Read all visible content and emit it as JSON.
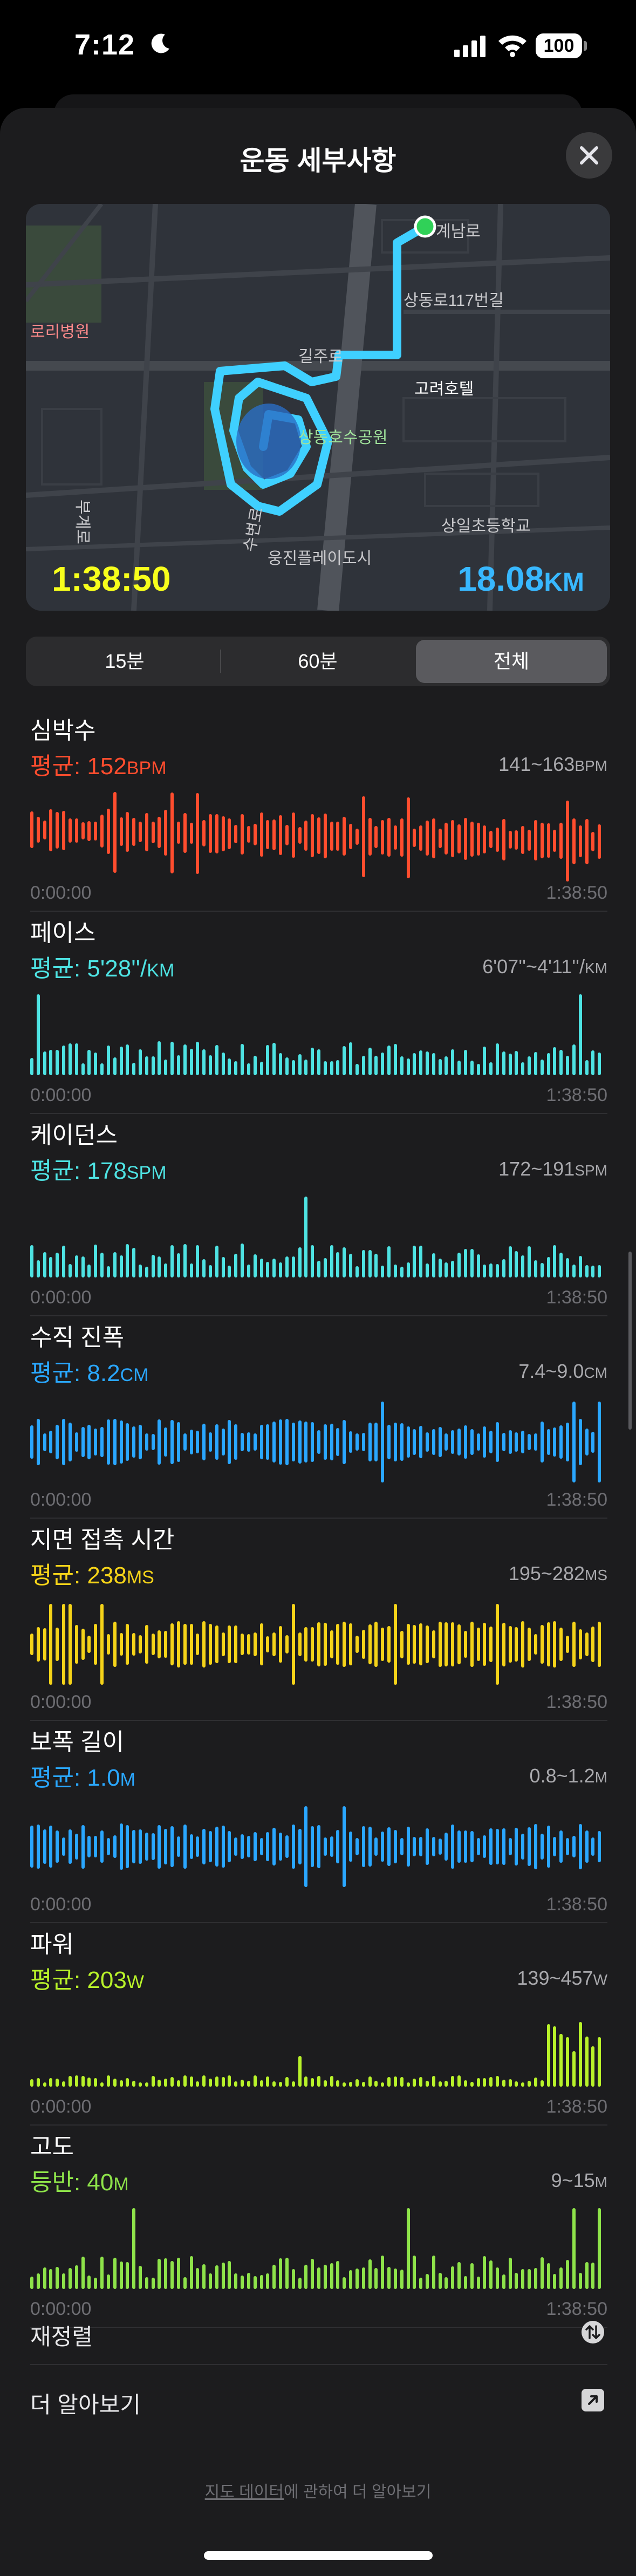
{
  "status": {
    "time": "7:12",
    "battery": "100"
  },
  "header": {
    "title": "운동 세부사항"
  },
  "map": {
    "duration": "1:38:50",
    "distance": "18.08",
    "distance_unit": "KM",
    "labels": {
      "hospital": "로리병원",
      "road1": "계남로",
      "road2": "상동로117번길",
      "road3": "길주로",
      "hotel": "고려호텔",
      "park": "상동호수공원",
      "school": "상일초등학교",
      "building": "웅진플레이도시",
      "road4": "부계로",
      "road5": "수변로"
    }
  },
  "segments": {
    "opt1": "15분",
    "opt2": "60분",
    "opt3": "전체",
    "selected": "전체"
  },
  "metrics": [
    {
      "title": "심박수",
      "avg_prefix": "평균: ",
      "avg_value": "152",
      "avg_unit": "BPM",
      "range": "141~163",
      "range_unit": "BPM",
      "start": "0:00:00",
      "end": "1:38:50",
      "color": "#ff4d2e"
    },
    {
      "title": "페이스",
      "avg_prefix": "평균: ",
      "avg_value": "5'28''/",
      "avg_unit": "KM",
      "range": "6'07''~4'11''/",
      "range_unit": "KM",
      "start": "0:00:00",
      "end": "1:38:50",
      "color": "#4ee3e3"
    },
    {
      "title": "케이던스",
      "avg_prefix": "평균: ",
      "avg_value": "178",
      "avg_unit": "SPM",
      "range": "172~191",
      "range_unit": "SPM",
      "start": "0:00:00",
      "end": "1:38:50",
      "color": "#4ee3e3"
    },
    {
      "title": "수직 진폭",
      "avg_prefix": "평균: ",
      "avg_value": "8.2",
      "avg_unit": "CM",
      "range": "7.4~9.0",
      "range_unit": "CM",
      "start": "0:00:00",
      "end": "1:38:50",
      "color": "#2aa7ff"
    },
    {
      "title": "지면 접촉 시간",
      "avg_prefix": "평균: ",
      "avg_value": "238",
      "avg_unit": "MS",
      "range": "195~282",
      "range_unit": "MS",
      "start": "0:00:00",
      "end": "1:38:50",
      "color": "#f5d319"
    },
    {
      "title": "보폭 길이",
      "avg_prefix": "평균: ",
      "avg_value": "1.0",
      "avg_unit": "M",
      "range": "0.8~1.2",
      "range_unit": "M",
      "start": "0:00:00",
      "end": "1:38:50",
      "color": "#2aa7ff"
    },
    {
      "title": "파워",
      "avg_prefix": "평균: ",
      "avg_value": "203",
      "avg_unit": "W",
      "range": "139~457",
      "range_unit": "W",
      "start": "0:00:00",
      "end": "1:38:50",
      "color": "#b8f22a"
    },
    {
      "title": "고도",
      "avg_prefix": "등반: ",
      "avg_value": "40",
      "avg_unit": "M",
      "range": "9~15",
      "range_unit": "M",
      "start": "0:00:00",
      "end": "1:38:50",
      "color": "#8ee34a"
    }
  ],
  "rows": {
    "reorder": "재정렬",
    "learn_more": "더 알아보기"
  },
  "footer": {
    "link": "지도 데이터",
    "rest": "에 관하여 더 알아보기"
  }
}
